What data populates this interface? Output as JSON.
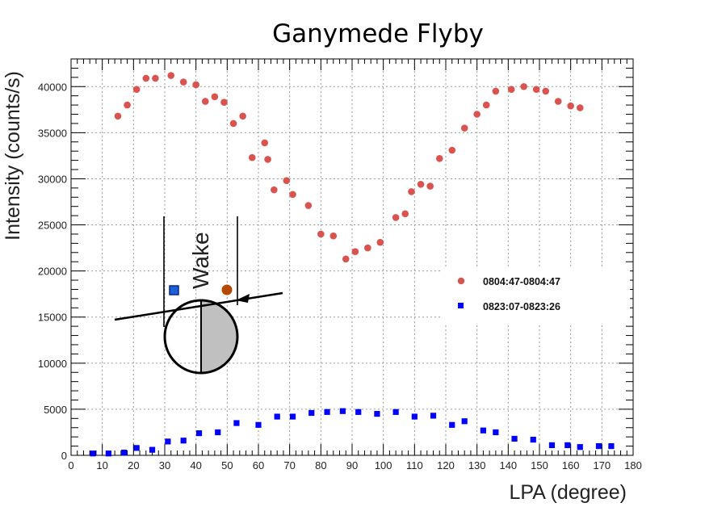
{
  "chart_data": {
    "type": "scatter",
    "title": "Ganymede Flyby",
    "xlabel": "LPA (degree)",
    "ylabel": "Intensity (counts/s)",
    "xlim": [
      0,
      180
    ],
    "ylim": [
      0,
      43000
    ],
    "x_ticks": [
      0,
      10,
      20,
      30,
      40,
      50,
      60,
      70,
      80,
      90,
      100,
      110,
      120,
      130,
      140,
      150,
      160,
      170,
      180
    ],
    "y_ticks": [
      0,
      5000,
      10000,
      15000,
      20000,
      25000,
      30000,
      35000,
      40000
    ],
    "grid": true,
    "legend_position": "right",
    "series": [
      {
        "name": "0804:47-0804:47",
        "color": "#d9534f",
        "marker": "circle",
        "points": [
          [
            15,
            36800
          ],
          [
            18,
            38000
          ],
          [
            21,
            39700
          ],
          [
            24,
            40900
          ],
          [
            27,
            40900
          ],
          [
            32,
            41200
          ],
          [
            36,
            40500
          ],
          [
            40,
            40200
          ],
          [
            43,
            38400
          ],
          [
            46,
            38900
          ],
          [
            49,
            38300
          ],
          [
            52,
            36000
          ],
          [
            55,
            36800
          ],
          [
            58,
            32300
          ],
          [
            62,
            33900
          ],
          [
            63,
            32100
          ],
          [
            65,
            28800
          ],
          [
            69,
            29800
          ],
          [
            71,
            28300
          ],
          [
            76,
            27100
          ],
          [
            80,
            24000
          ],
          [
            84,
            23800
          ],
          [
            88,
            21300
          ],
          [
            91,
            22100
          ],
          [
            95,
            22500
          ],
          [
            99,
            23100
          ],
          [
            104,
            25800
          ],
          [
            107,
            26200
          ],
          [
            109,
            28600
          ],
          [
            112,
            29400
          ],
          [
            115,
            29200
          ],
          [
            118,
            32200
          ],
          [
            122,
            33100
          ],
          [
            126,
            35500
          ],
          [
            130,
            37000
          ],
          [
            133,
            38000
          ],
          [
            136,
            39500
          ],
          [
            141,
            39700
          ],
          [
            145,
            40000
          ],
          [
            149,
            39700
          ],
          [
            152,
            39500
          ],
          [
            156,
            38400
          ],
          [
            160,
            37900
          ],
          [
            163,
            37700
          ]
        ]
      },
      {
        "name": "0823:07-0823:26",
        "color": "#0000ff",
        "marker": "square",
        "points": [
          [
            7,
            200
          ],
          [
            12,
            200
          ],
          [
            17,
            300
          ],
          [
            21,
            800
          ],
          [
            26,
            600
          ],
          [
            31,
            1500
          ],
          [
            36,
            1600
          ],
          [
            41,
            2400
          ],
          [
            47,
            2500
          ],
          [
            53,
            3500
          ],
          [
            60,
            3300
          ],
          [
            66,
            4200
          ],
          [
            71,
            4200
          ],
          [
            77,
            4600
          ],
          [
            82,
            4700
          ],
          [
            87,
            4800
          ],
          [
            92,
            4700
          ],
          [
            98,
            4500
          ],
          [
            104,
            4700
          ],
          [
            110,
            4200
          ],
          [
            116,
            4300
          ],
          [
            122,
            3300
          ],
          [
            126,
            3700
          ],
          [
            132,
            2700
          ],
          [
            136,
            2500
          ],
          [
            142,
            1800
          ],
          [
            148,
            1700
          ],
          [
            154,
            1100
          ],
          [
            159,
            1100
          ],
          [
            163,
            900
          ],
          [
            169,
            1000
          ],
          [
            173,
            1000
          ]
        ]
      }
    ],
    "annotations": [
      {
        "text": "Wake"
      }
    ]
  }
}
